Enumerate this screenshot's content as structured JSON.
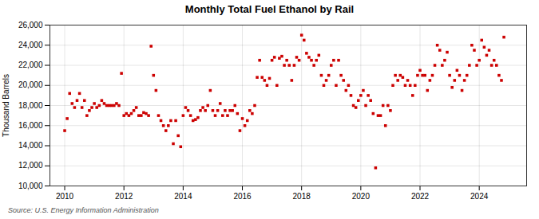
{
  "chart_data": {
    "type": "scatter",
    "title": "Monthly Total Fuel Ethanol by Rail",
    "ylabel": "Thousand Barrels",
    "annotations": [
      "Source: U.S. Energy Information Administration"
    ],
    "color": "#cc0000",
    "marker": "square",
    "grid": true,
    "xlim": [
      2009.5,
      2025.6
    ],
    "xticks": [
      2010,
      2012,
      2014,
      2016,
      2018,
      2020,
      2022,
      2024
    ],
    "ylim": [
      10000,
      26000
    ],
    "yticks": [
      {
        "value": 10000,
        "label": "10,000"
      },
      {
        "value": 12000,
        "label": "12,000"
      },
      {
        "value": 14000,
        "label": "14,000"
      },
      {
        "value": 16000,
        "label": "16,000"
      },
      {
        "value": 18000,
        "label": "18,000"
      },
      {
        "value": 20000,
        "label": "20,000"
      },
      {
        "value": 22000,
        "label": "22,000"
      },
      {
        "value": 24000,
        "label": "24,000"
      },
      {
        "value": 26000,
        "label": "26,000"
      }
    ],
    "x": [
      2010.0,
      2010.083,
      2010.167,
      2010.25,
      2010.333,
      2010.417,
      2010.5,
      2010.583,
      2010.667,
      2010.75,
      2010.833,
      2010.917,
      2011.0,
      2011.083,
      2011.167,
      2011.25,
      2011.333,
      2011.417,
      2011.5,
      2011.583,
      2011.667,
      2011.75,
      2011.833,
      2011.917,
      2012.0,
      2012.083,
      2012.167,
      2012.25,
      2012.333,
      2012.417,
      2012.5,
      2012.583,
      2012.667,
      2012.75,
      2012.833,
      2012.917,
      2013.0,
      2013.083,
      2013.167,
      2013.25,
      2013.333,
      2013.417,
      2013.5,
      2013.583,
      2013.667,
      2013.75,
      2013.833,
      2013.917,
      2014.0,
      2014.083,
      2014.167,
      2014.25,
      2014.333,
      2014.417,
      2014.5,
      2014.583,
      2014.667,
      2014.75,
      2014.833,
      2014.917,
      2015.0,
      2015.083,
      2015.167,
      2015.25,
      2015.333,
      2015.417,
      2015.5,
      2015.583,
      2015.667,
      2015.75,
      2015.833,
      2015.917,
      2016.0,
      2016.083,
      2016.167,
      2016.25,
      2016.333,
      2016.417,
      2016.5,
      2016.583,
      2016.667,
      2016.75,
      2016.833,
      2016.917,
      2017.0,
      2017.083,
      2017.167,
      2017.25,
      2017.333,
      2017.417,
      2017.5,
      2017.583,
      2017.667,
      2017.75,
      2017.833,
      2017.917,
      2018.0,
      2018.083,
      2018.167,
      2018.25,
      2018.333,
      2018.417,
      2018.5,
      2018.583,
      2018.667,
      2018.75,
      2018.833,
      2018.917,
      2019.0,
      2019.083,
      2019.167,
      2019.25,
      2019.333,
      2019.417,
      2019.5,
      2019.583,
      2019.667,
      2019.75,
      2019.833,
      2019.917,
      2020.0,
      2020.083,
      2020.167,
      2020.25,
      2020.333,
      2020.417,
      2020.5,
      2020.583,
      2020.667,
      2020.75,
      2020.833,
      2020.917,
      2021.0,
      2021.083,
      2021.167,
      2021.25,
      2021.333,
      2021.417,
      2021.5,
      2021.583,
      2021.667,
      2021.75,
      2021.833,
      2021.917,
      2022.0,
      2022.083,
      2022.167,
      2022.25,
      2022.333,
      2022.417,
      2022.5,
      2022.583,
      2022.667,
      2022.75,
      2022.833,
      2022.917,
      2023.0,
      2023.083,
      2023.167,
      2023.25,
      2023.333,
      2023.417,
      2023.5,
      2023.583,
      2023.667,
      2023.75,
      2023.833,
      2023.917,
      2024.0,
      2024.083,
      2024.167,
      2024.25,
      2024.333,
      2024.417,
      2024.5,
      2024.583,
      2024.667,
      2024.75,
      2024.833
    ],
    "values": [
      15500,
      16700,
      19200,
      18200,
      17800,
      18500,
      19200,
      17800,
      18500,
      17000,
      17500,
      17800,
      18200,
      17800,
      18000,
      18500,
      18200,
      18000,
      18000,
      18000,
      18000,
      18200,
      18000,
      21200,
      17000,
      17200,
      17000,
      17200,
      17500,
      17800,
      17000,
      17000,
      17300,
      17200,
      17000,
      23900,
      21000,
      19500,
      17000,
      16500,
      16000,
      15500,
      16000,
      16500,
      14200,
      16500,
      15000,
      13900,
      17000,
      17800,
      17500,
      17000,
      16500,
      16600,
      16800,
      17500,
      17800,
      17500,
      18000,
      19500,
      17500,
      17000,
      17500,
      18200,
      17000,
      17500,
      17000,
      17500,
      17500,
      18000,
      17200,
      15500,
      16700,
      16000,
      16500,
      17500,
      17200,
      18000,
      20800,
      22500,
      20800,
      20500,
      20000,
      20700,
      22500,
      22800,
      20000,
      22700,
      22900,
      22000,
      22500,
      22000,
      20500,
      22000,
      22800,
      22500,
      25000,
      24500,
      23200,
      22800,
      22500,
      22000,
      22500,
      23000,
      21000,
      20000,
      20500,
      21000,
      22000,
      22500,
      20000,
      22500,
      21000,
      20500,
      19500,
      20000,
      19000,
      18000,
      17800,
      18500,
      19000,
      19500,
      18000,
      19000,
      18500,
      17200,
      11800,
      17000,
      17000,
      18000,
      16000,
      18000,
      17500,
      20000,
      21000,
      20500,
      21000,
      20800,
      20000,
      20500,
      20000,
      19000,
      20000,
      21000,
      21500,
      21000,
      21000,
      19500,
      20500,
      21000,
      22000,
      24000,
      23500,
      22000,
      22500,
      23300,
      21000,
      19800,
      20500,
      21500,
      21000,
      19500,
      20500,
      21000,
      22000,
      24000,
      23500,
      22000,
      22500,
      24500,
      23800,
      23000,
      23500,
      22000,
      22500,
      22000,
      21000,
      20500,
      24800
    ]
  }
}
